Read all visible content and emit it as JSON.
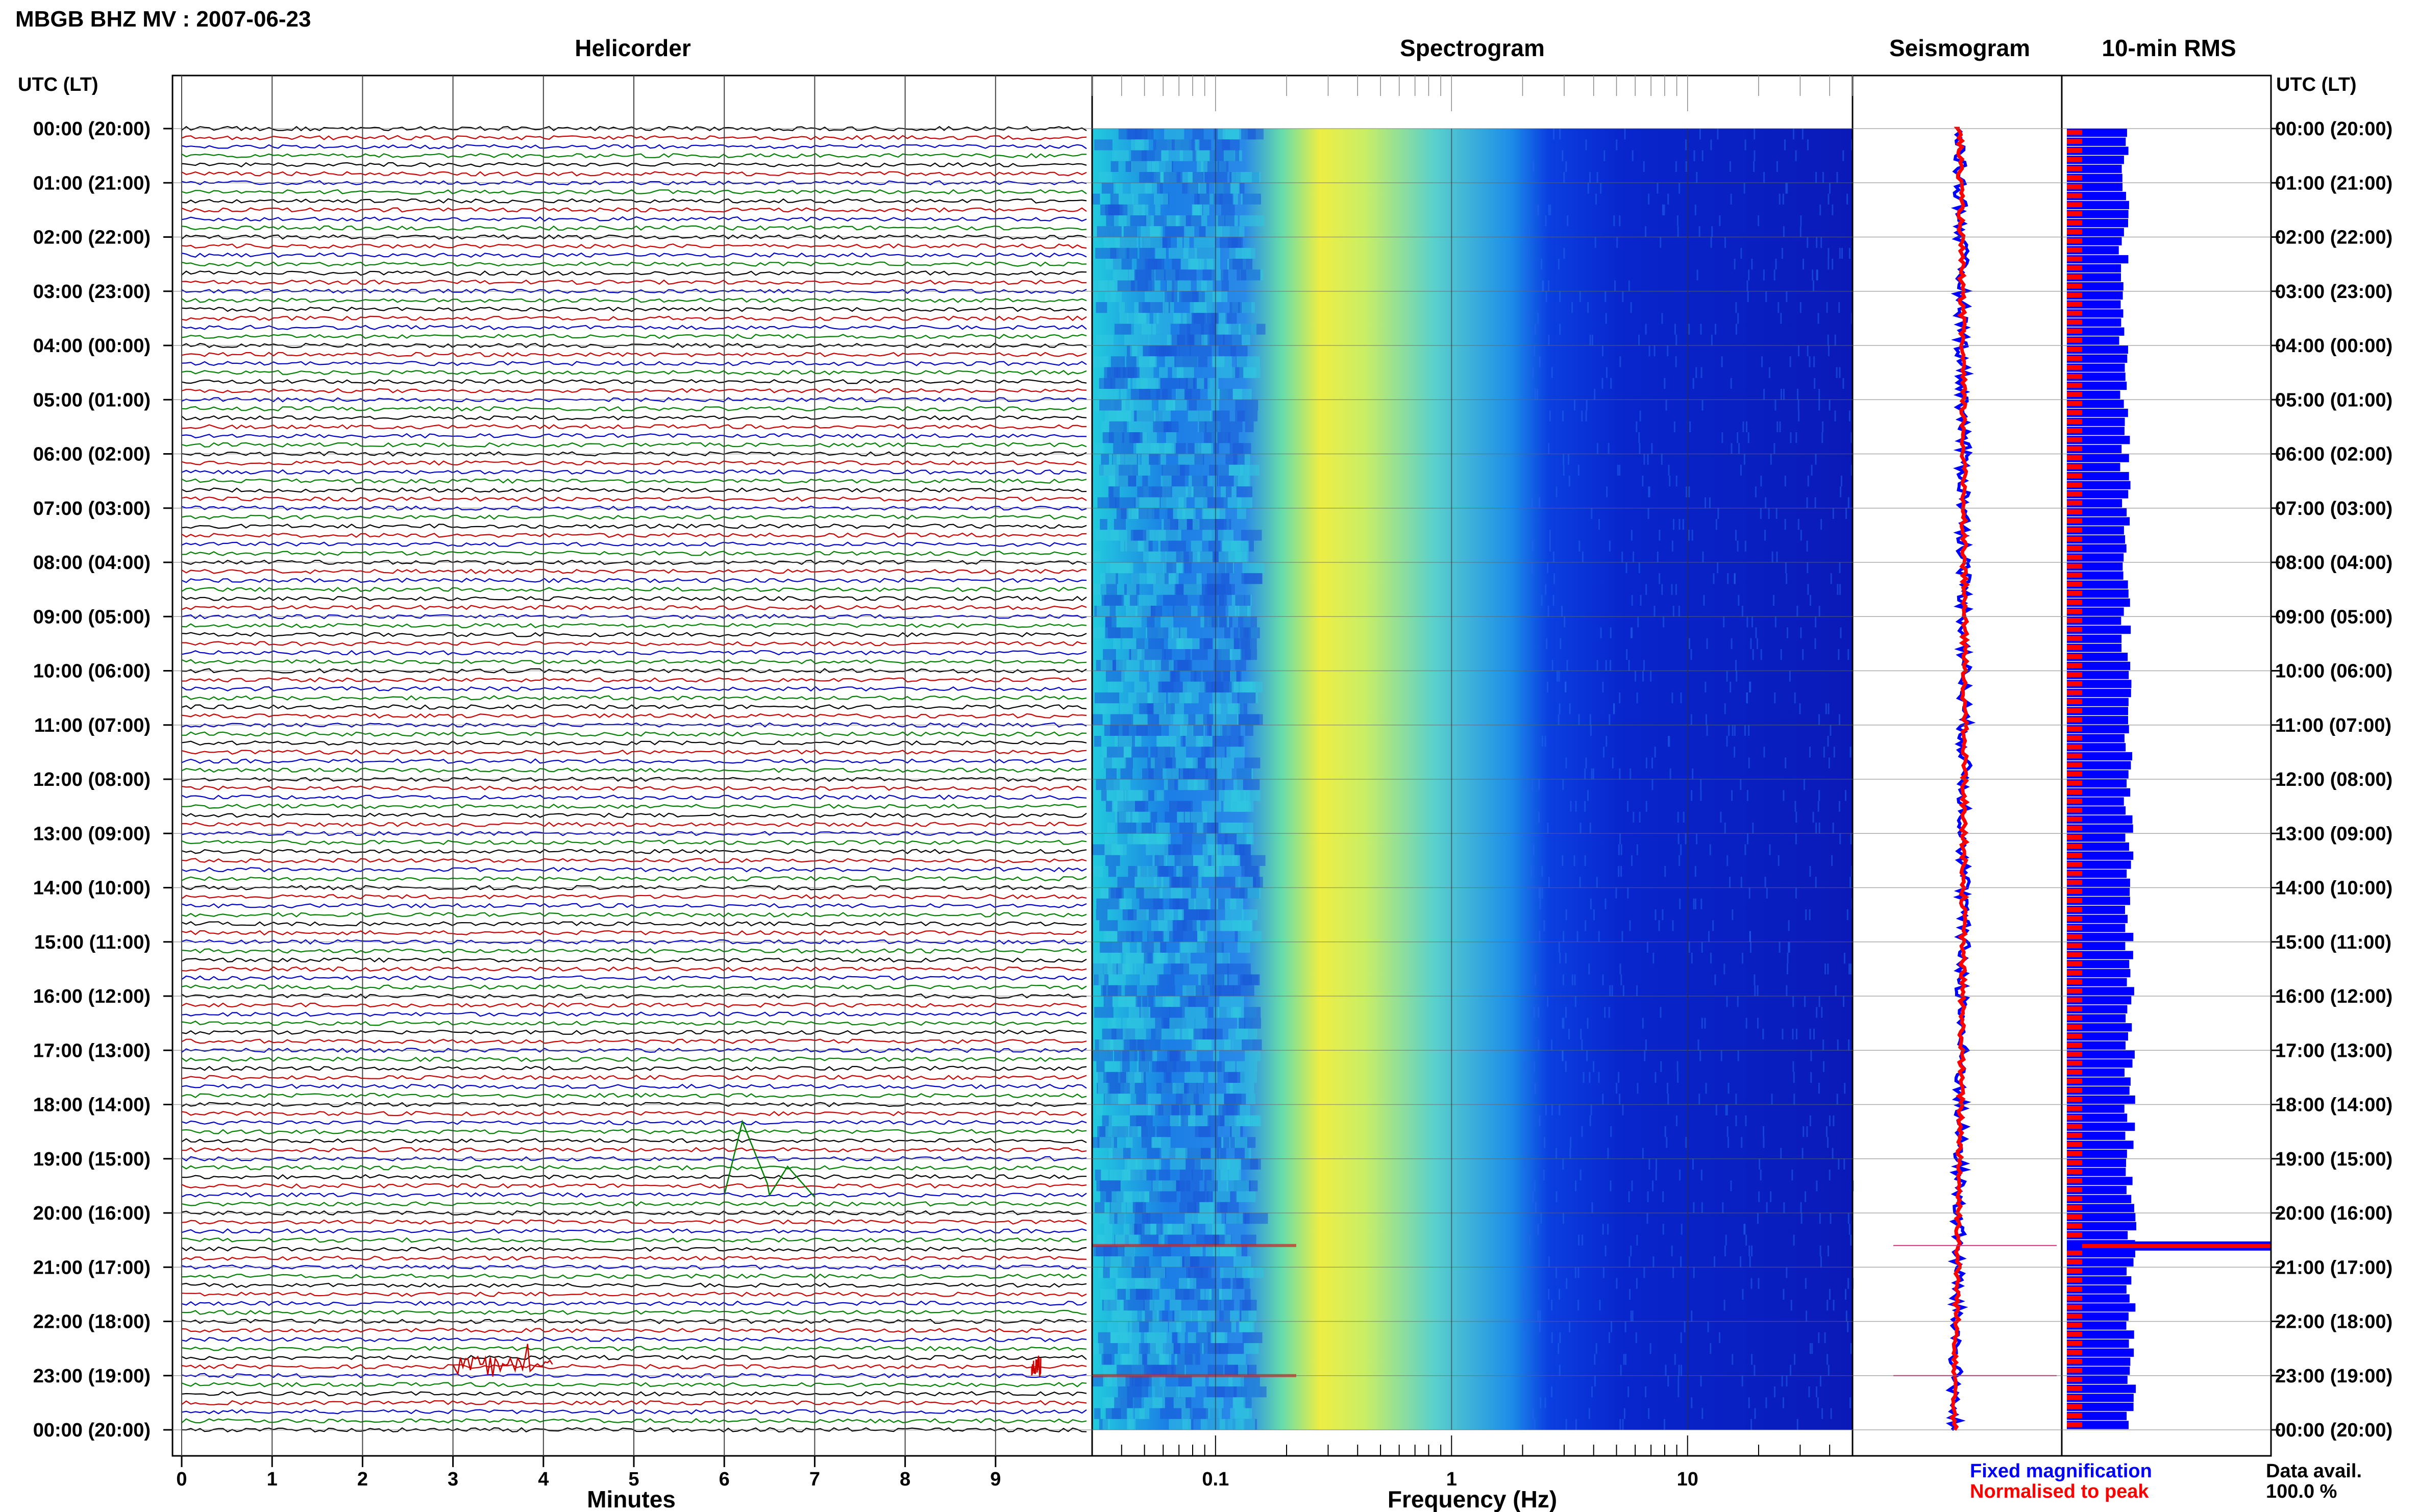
{
  "header": {
    "title": "MBGB BHZ MV : 2007-06-23"
  },
  "panels": {
    "helicorder": "Helicorder",
    "spectrogram": "Spectrogram",
    "seismogram": "Seismogram",
    "rms": "10-min RMS"
  },
  "axes": {
    "left_header": "UTC (LT)",
    "right_header": "UTC (LT)",
    "helicorder_xlabel": "Minutes",
    "spectrogram_xlabel": "Frequency (Hz)"
  },
  "legend": {
    "fixed": "Fixed magnification",
    "normalised": "Normalised to peak",
    "data_avail_label": "Data avail.",
    "data_avail_value": "100.0 %"
  },
  "colors": {
    "fixed": "#0000ff",
    "normalised": "#ff0000",
    "trace_cycle": [
      "#000000",
      "#cc0000",
      "#0000cc",
      "#008000"
    ]
  },
  "chart_data": {
    "type": "heatmap",
    "time_labels": [
      "00:00 (20:00)",
      "01:00 (21:00)",
      "02:00 (22:00)",
      "03:00 (23:00)",
      "04:00 (00:00)",
      "05:00 (01:00)",
      "06:00 (02:00)",
      "07:00 (03:00)",
      "08:00 (04:00)",
      "09:00 (05:00)",
      "10:00 (06:00)",
      "11:00 (07:00)",
      "12:00 (08:00)",
      "13:00 (09:00)",
      "14:00 (10:00)",
      "15:00 (11:00)",
      "16:00 (12:00)",
      "17:00 (13:00)",
      "18:00 (14:00)",
      "19:00 (15:00)",
      "20:00 (16:00)",
      "21:00 (17:00)",
      "22:00 (18:00)",
      "23:00 (19:00)",
      "00:00 (20:00)"
    ],
    "helicorder": {
      "x_ticks": [
        "0",
        "1",
        "2",
        "3",
        "4",
        "5",
        "6",
        "7",
        "8",
        "9"
      ],
      "xlim": [
        0,
        10
      ],
      "lines_per_hour": 6,
      "events": [
        {
          "hour": 19.67,
          "minute_start": 6.0,
          "minute_end": 7.0,
          "color": "green"
        },
        {
          "hour": 22.83,
          "minute_start": 3.0,
          "minute_end": 4.1,
          "color": "red"
        },
        {
          "hour": 22.83,
          "minute_start": 9.4,
          "minute_end": 9.5,
          "color": "red"
        }
      ]
    },
    "spectrogram": {
      "x_ticks": [
        "0.1",
        "1",
        "10"
      ],
      "xscale": "log",
      "xlim": [
        0.03,
        50
      ],
      "peak_band_hz": [
        0.2,
        0.5
      ]
    },
    "seismogram": {
      "spike_hours": [
        20.6,
        23.0
      ]
    },
    "rms": {
      "spike_hour": 20.6
    }
  }
}
